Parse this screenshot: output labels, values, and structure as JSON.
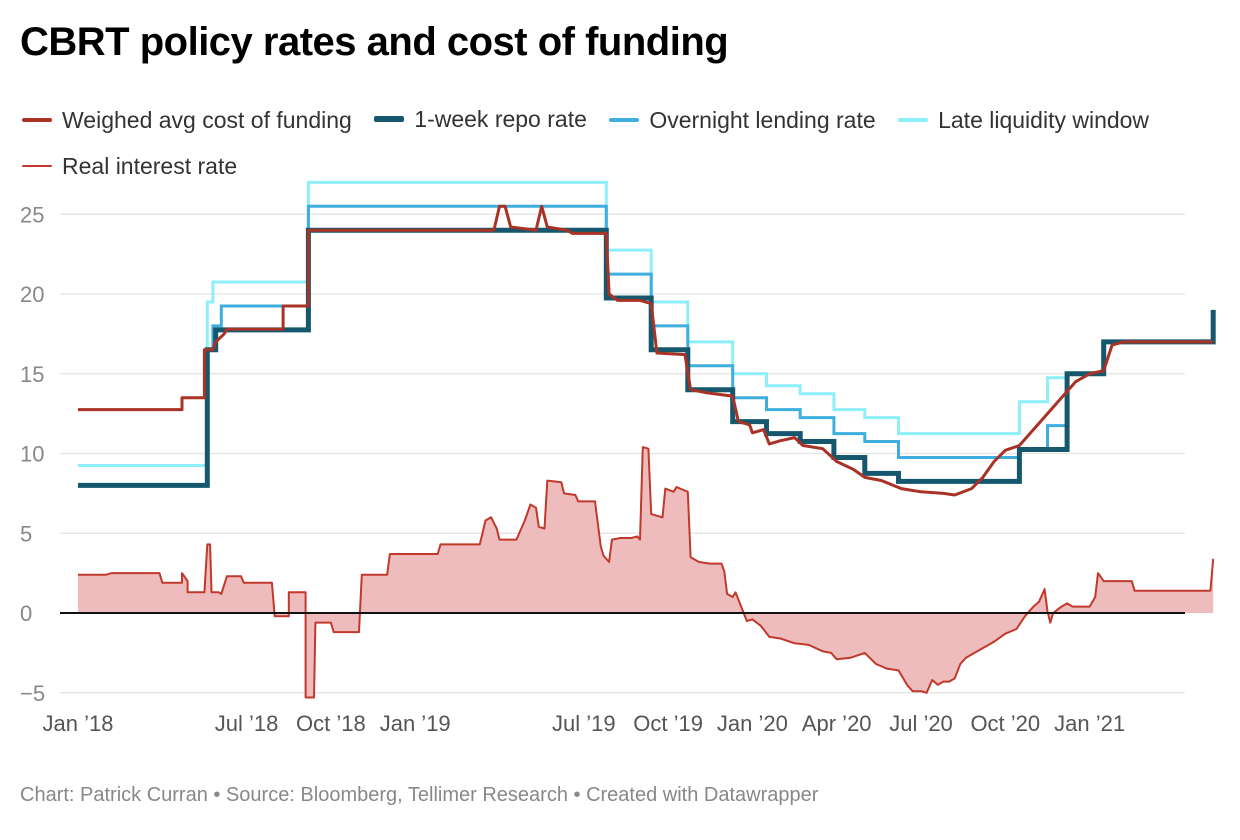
{
  "title": "CBRT policy rates and cost of funding",
  "footer": "Chart: Patrick Curran • Source: Bloomberg, Tellimer Research • Created with Datawrapper",
  "legend": [
    {
      "label": "Weighed avg cost of funding",
      "color": "#a93226",
      "key": "wacf"
    },
    {
      "label": "1-week repo rate",
      "color": "#15586d",
      "key": "repo"
    },
    {
      "label": "Overnight lending rate",
      "color": "#3eaede",
      "key": "onl"
    },
    {
      "label": "Late liquidity window",
      "color": "#8eeef9",
      "key": "llw"
    },
    {
      "label": "Real interest rate",
      "color": "#c0392b",
      "key": "real"
    }
  ],
  "chart_data": {
    "type": "line",
    "title": "CBRT policy rates and cost of funding",
    "x_unit": "months since Jan 2018",
    "xlim": [
      0,
      41.5
    ],
    "ylim": [
      -5.5,
      27
    ],
    "y_ticks": [
      25,
      20,
      15,
      10,
      5,
      0,
      -5
    ],
    "y_tick_labels": [
      "25",
      "20",
      "15",
      "10",
      "5",
      "0",
      "−5"
    ],
    "x_ticks": [
      {
        "x": 0,
        "label": "Jan ’18"
      },
      {
        "x": 6,
        "label": "Jul ’18"
      },
      {
        "x": 9,
        "label": "Oct ’18"
      },
      {
        "x": 12,
        "label": "Jan ’19"
      },
      {
        "x": 18,
        "label": "Jul ’19"
      },
      {
        "x": 21,
        "label": "Oct ’19"
      },
      {
        "x": 24,
        "label": "Jan ’20"
      },
      {
        "x": 27,
        "label": "Apr ’20"
      },
      {
        "x": 30,
        "label": "Jul ’20"
      },
      {
        "x": 33,
        "label": "Oct ’20"
      },
      {
        "x": 36,
        "label": "Jan ’21"
      }
    ],
    "series": [
      {
        "name": "Late liquidity window",
        "key": "llw",
        "color": "#8eeef9",
        "width": 3,
        "step": true,
        "points": [
          [
            0,
            9.25
          ],
          [
            4.6,
            9.25
          ],
          [
            4.6,
            19.5
          ],
          [
            4.8,
            19.5
          ],
          [
            4.8,
            20.75
          ],
          [
            8.2,
            20.75
          ],
          [
            8.2,
            27
          ],
          [
            18.8,
            27
          ],
          [
            18.8,
            22.75
          ],
          [
            20.4,
            22.75
          ],
          [
            20.4,
            19.5
          ],
          [
            21.7,
            19.5
          ],
          [
            21.7,
            17
          ],
          [
            23.3,
            17
          ],
          [
            23.3,
            15
          ],
          [
            24.5,
            15
          ],
          [
            24.5,
            14.25
          ],
          [
            25.7,
            14.25
          ],
          [
            25.7,
            13.75
          ],
          [
            26.9,
            13.75
          ],
          [
            26.9,
            12.75
          ],
          [
            28.0,
            12.75
          ],
          [
            28.0,
            12.25
          ],
          [
            29.2,
            12.25
          ],
          [
            29.2,
            11.25
          ],
          [
            33.5,
            11.25
          ],
          [
            33.5,
            13.25
          ],
          [
            34.5,
            13.25
          ],
          [
            34.5,
            14.75
          ],
          [
            35.2,
            14.75
          ],
          [
            35.2,
            14.75
          ]
        ]
      },
      {
        "name": "Overnight lending rate",
        "key": "onl",
        "color": "#3eaede",
        "width": 3,
        "step": true,
        "points": [
          [
            4.6,
            16.5
          ],
          [
            4.8,
            16.5
          ],
          [
            4.8,
            18
          ],
          [
            5.1,
            18
          ],
          [
            5.1,
            19.25
          ],
          [
            8.2,
            19.25
          ],
          [
            8.2,
            25.5
          ],
          [
            18.8,
            25.5
          ],
          [
            18.8,
            21.25
          ],
          [
            20.4,
            21.25
          ],
          [
            20.4,
            18
          ],
          [
            21.7,
            18
          ],
          [
            21.7,
            15.5
          ],
          [
            23.3,
            15.5
          ],
          [
            23.3,
            13.5
          ],
          [
            24.5,
            13.5
          ],
          [
            24.5,
            12.75
          ],
          [
            25.7,
            12.75
          ],
          [
            25.7,
            12.25
          ],
          [
            26.9,
            12.25
          ],
          [
            26.9,
            11.25
          ],
          [
            28.0,
            11.25
          ],
          [
            28.0,
            10.75
          ],
          [
            29.2,
            10.75
          ],
          [
            29.2,
            9.75
          ],
          [
            33.5,
            9.75
          ],
          [
            33.5,
            10.25
          ],
          [
            34.5,
            10.25
          ],
          [
            34.5,
            11.75
          ],
          [
            35.2,
            11.75
          ],
          [
            35.2,
            10.25
          ],
          [
            35.2,
            10.25
          ]
        ]
      },
      {
        "name": "1-week repo rate",
        "key": "repo",
        "color": "#15586d",
        "width": 5,
        "step": true,
        "points": [
          [
            0,
            8
          ],
          [
            4.6,
            8
          ],
          [
            4.6,
            16.5
          ],
          [
            4.9,
            16.5
          ],
          [
            4.9,
            17.75
          ],
          [
            8.2,
            17.75
          ],
          [
            8.2,
            24
          ],
          [
            18.8,
            24
          ],
          [
            18.8,
            19.75
          ],
          [
            20.4,
            19.75
          ],
          [
            20.4,
            16.5
          ],
          [
            21.7,
            16.5
          ],
          [
            21.7,
            14
          ],
          [
            23.3,
            14
          ],
          [
            23.3,
            12
          ],
          [
            24.5,
            12
          ],
          [
            24.5,
            11.25
          ],
          [
            25.7,
            11.25
          ],
          [
            25.7,
            10.75
          ],
          [
            26.9,
            10.75
          ],
          [
            26.9,
            9.75
          ],
          [
            28.0,
            9.75
          ],
          [
            28.0,
            8.75
          ],
          [
            29.2,
            8.75
          ],
          [
            29.2,
            8.25
          ],
          [
            33.5,
            8.25
          ],
          [
            33.5,
            10.25
          ],
          [
            35.2,
            10.25
          ],
          [
            35.2,
            15
          ],
          [
            36.5,
            15
          ],
          [
            36.5,
            17
          ],
          [
            40.4,
            17
          ],
          [
            40.4,
            19
          ]
        ]
      },
      {
        "name": "Weighed avg cost of funding",
        "key": "wacf",
        "color": "#a93226",
        "width": 3,
        "step": false,
        "points": [
          [
            0,
            12.75
          ],
          [
            3.7,
            12.75
          ],
          [
            3.7,
            13.5
          ],
          [
            4.5,
            13.5
          ],
          [
            4.5,
            16.5
          ],
          [
            4.8,
            16.5
          ],
          [
            4.9,
            17
          ],
          [
            5.2,
            17.5
          ],
          [
            5.3,
            17.8
          ],
          [
            7.3,
            17.8
          ],
          [
            7.3,
            19.25
          ],
          [
            8.2,
            19.25
          ],
          [
            8.2,
            24
          ],
          [
            14.8,
            24
          ],
          [
            15.0,
            25.5
          ],
          [
            15.2,
            25.5
          ],
          [
            15.4,
            24.2
          ],
          [
            16.3,
            24
          ],
          [
            16.5,
            25.5
          ],
          [
            16.7,
            24.2
          ],
          [
            17.4,
            24.0
          ],
          [
            17.6,
            23.8
          ],
          [
            18.8,
            23.8
          ],
          [
            18.9,
            20
          ],
          [
            19.2,
            19.6
          ],
          [
            20.0,
            19.6
          ],
          [
            20.4,
            19.4
          ],
          [
            20.6,
            16.3
          ],
          [
            21.6,
            16.2
          ],
          [
            21.8,
            14.0
          ],
          [
            22.4,
            13.8
          ],
          [
            23.3,
            13.6
          ],
          [
            23.5,
            12.0
          ],
          [
            23.9,
            11.8
          ],
          [
            24.0,
            11.3
          ],
          [
            24.4,
            11.5
          ],
          [
            24.6,
            10.6
          ],
          [
            25.0,
            10.8
          ],
          [
            25.5,
            11.0
          ],
          [
            25.8,
            10.5
          ],
          [
            26.5,
            10.3
          ],
          [
            27.0,
            9.5
          ],
          [
            27.6,
            9.0
          ],
          [
            28.0,
            8.5
          ],
          [
            28.6,
            8.3
          ],
          [
            29.3,
            7.8
          ],
          [
            30.0,
            7.6
          ],
          [
            30.8,
            7.5
          ],
          [
            31.2,
            7.4
          ],
          [
            31.8,
            7.8
          ],
          [
            32.2,
            8.5
          ],
          [
            32.6,
            9.5
          ],
          [
            33.0,
            10.2
          ],
          [
            33.5,
            10.5
          ],
          [
            34.0,
            11.5
          ],
          [
            34.5,
            12.5
          ],
          [
            35.0,
            13.5
          ],
          [
            35.5,
            14.5
          ],
          [
            36.0,
            15.0
          ],
          [
            36.5,
            15.2
          ],
          [
            36.8,
            16.8
          ],
          [
            37.2,
            17.0
          ],
          [
            40.4,
            17.0
          ]
        ]
      }
    ],
    "area_series": {
      "name": "Real interest rate",
      "key": "real",
      "color": "#c0392b",
      "fill": "#eebcbc",
      "width": 2,
      "points": [
        [
          0,
          2.4
        ],
        [
          1.0,
          2.4
        ],
        [
          1.2,
          2.5
        ],
        [
          2.9,
          2.5
        ],
        [
          3.0,
          1.9
        ],
        [
          3.7,
          1.9
        ],
        [
          3.7,
          2.5
        ],
        [
          3.9,
          2.0
        ],
        [
          3.9,
          1.3
        ],
        [
          4.5,
          1.3
        ],
        [
          4.6,
          4.3
        ],
        [
          4.7,
          4.3
        ],
        [
          4.75,
          1.3
        ],
        [
          5.0,
          1.3
        ],
        [
          5.1,
          1.2
        ],
        [
          5.3,
          2.3
        ],
        [
          5.8,
          2.3
        ],
        [
          5.9,
          1.9
        ],
        [
          6.9,
          1.9
        ],
        [
          7.0,
          -0.2
        ],
        [
          7.5,
          -0.2
        ],
        [
          7.5,
          1.3
        ],
        [
          8.1,
          1.3
        ],
        [
          8.1,
          -5.3
        ],
        [
          8.4,
          -5.3
        ],
        [
          8.45,
          -0.6
        ],
        [
          9.0,
          -0.6
        ],
        [
          9.1,
          -1.2
        ],
        [
          10.0,
          -1.2
        ],
        [
          10.1,
          2.4
        ],
        [
          11.0,
          2.4
        ],
        [
          11.1,
          3.7
        ],
        [
          12.8,
          3.7
        ],
        [
          12.9,
          4.3
        ],
        [
          14.0,
          4.3
        ],
        [
          14.3,
          4.3
        ],
        [
          14.5,
          5.8
        ],
        [
          14.7,
          6.0
        ],
        [
          14.9,
          5.3
        ],
        [
          15.0,
          4.6
        ],
        [
          15.6,
          4.6
        ],
        [
          15.9,
          5.8
        ],
        [
          16.1,
          6.8
        ],
        [
          16.3,
          6.6
        ],
        [
          16.4,
          5.4
        ],
        [
          16.6,
          5.3
        ],
        [
          16.7,
          8.3
        ],
        [
          17.2,
          8.2
        ],
        [
          17.3,
          7.5
        ],
        [
          17.7,
          7.4
        ],
        [
          17.8,
          7.0
        ],
        [
          18.4,
          7.0
        ],
        [
          18.6,
          4.2
        ],
        [
          18.7,
          3.6
        ],
        [
          18.9,
          3.2
        ],
        [
          19.0,
          4.6
        ],
        [
          19.3,
          4.7
        ],
        [
          19.7,
          4.7
        ],
        [
          19.9,
          4.8
        ],
        [
          20.0,
          4.6
        ],
        [
          20.1,
          10.4
        ],
        [
          20.3,
          10.3
        ],
        [
          20.4,
          6.2
        ],
        [
          20.8,
          6.0
        ],
        [
          20.9,
          7.8
        ],
        [
          21.2,
          7.6
        ],
        [
          21.3,
          7.9
        ],
        [
          21.7,
          7.6
        ],
        [
          21.8,
          3.5
        ],
        [
          22.1,
          3.2
        ],
        [
          22.5,
          3.1
        ],
        [
          22.9,
          3.1
        ],
        [
          23.0,
          2.6
        ],
        [
          23.1,
          1.2
        ],
        [
          23.3,
          1.0
        ],
        [
          23.4,
          1.3
        ],
        [
          23.6,
          0.4
        ],
        [
          23.8,
          -0.5
        ],
        [
          24.0,
          -0.4
        ],
        [
          24.3,
          -0.8
        ],
        [
          24.6,
          -1.5
        ],
        [
          25.0,
          -1.6
        ],
        [
          25.5,
          -1.9
        ],
        [
          26.0,
          -2.0
        ],
        [
          26.5,
          -2.4
        ],
        [
          26.8,
          -2.5
        ],
        [
          27.0,
          -2.9
        ],
        [
          27.5,
          -2.8
        ],
        [
          28.0,
          -2.5
        ],
        [
          28.4,
          -3.2
        ],
        [
          28.8,
          -3.5
        ],
        [
          29.2,
          -3.6
        ],
        [
          29.5,
          -4.5
        ],
        [
          29.7,
          -4.9
        ],
        [
          30.0,
          -4.9
        ],
        [
          30.2,
          -5.0
        ],
        [
          30.4,
          -4.2
        ],
        [
          30.6,
          -4.5
        ],
        [
          30.8,
          -4.3
        ],
        [
          31.0,
          -4.3
        ],
        [
          31.2,
          -4.1
        ],
        [
          31.4,
          -3.2
        ],
        [
          31.6,
          -2.8
        ],
        [
          31.8,
          -2.6
        ],
        [
          32.2,
          -2.2
        ],
        [
          32.6,
          -1.8
        ],
        [
          33.0,
          -1.3
        ],
        [
          33.4,
          -1.0
        ],
        [
          33.7,
          -0.2
        ],
        [
          34.0,
          0.4
        ],
        [
          34.2,
          0.7
        ],
        [
          34.4,
          1.5
        ],
        [
          34.5,
          0.1
        ],
        [
          34.6,
          -0.6
        ],
        [
          34.7,
          0.0
        ],
        [
          35.0,
          0.4
        ],
        [
          35.2,
          0.6
        ],
        [
          35.4,
          0.4
        ],
        [
          36.0,
          0.4
        ],
        [
          36.2,
          1.0
        ],
        [
          36.3,
          2.5
        ],
        [
          36.5,
          2.0
        ],
        [
          37.5,
          2.0
        ],
        [
          37.6,
          1.4
        ],
        [
          40.3,
          1.4
        ],
        [
          40.4,
          3.4
        ]
      ]
    }
  }
}
